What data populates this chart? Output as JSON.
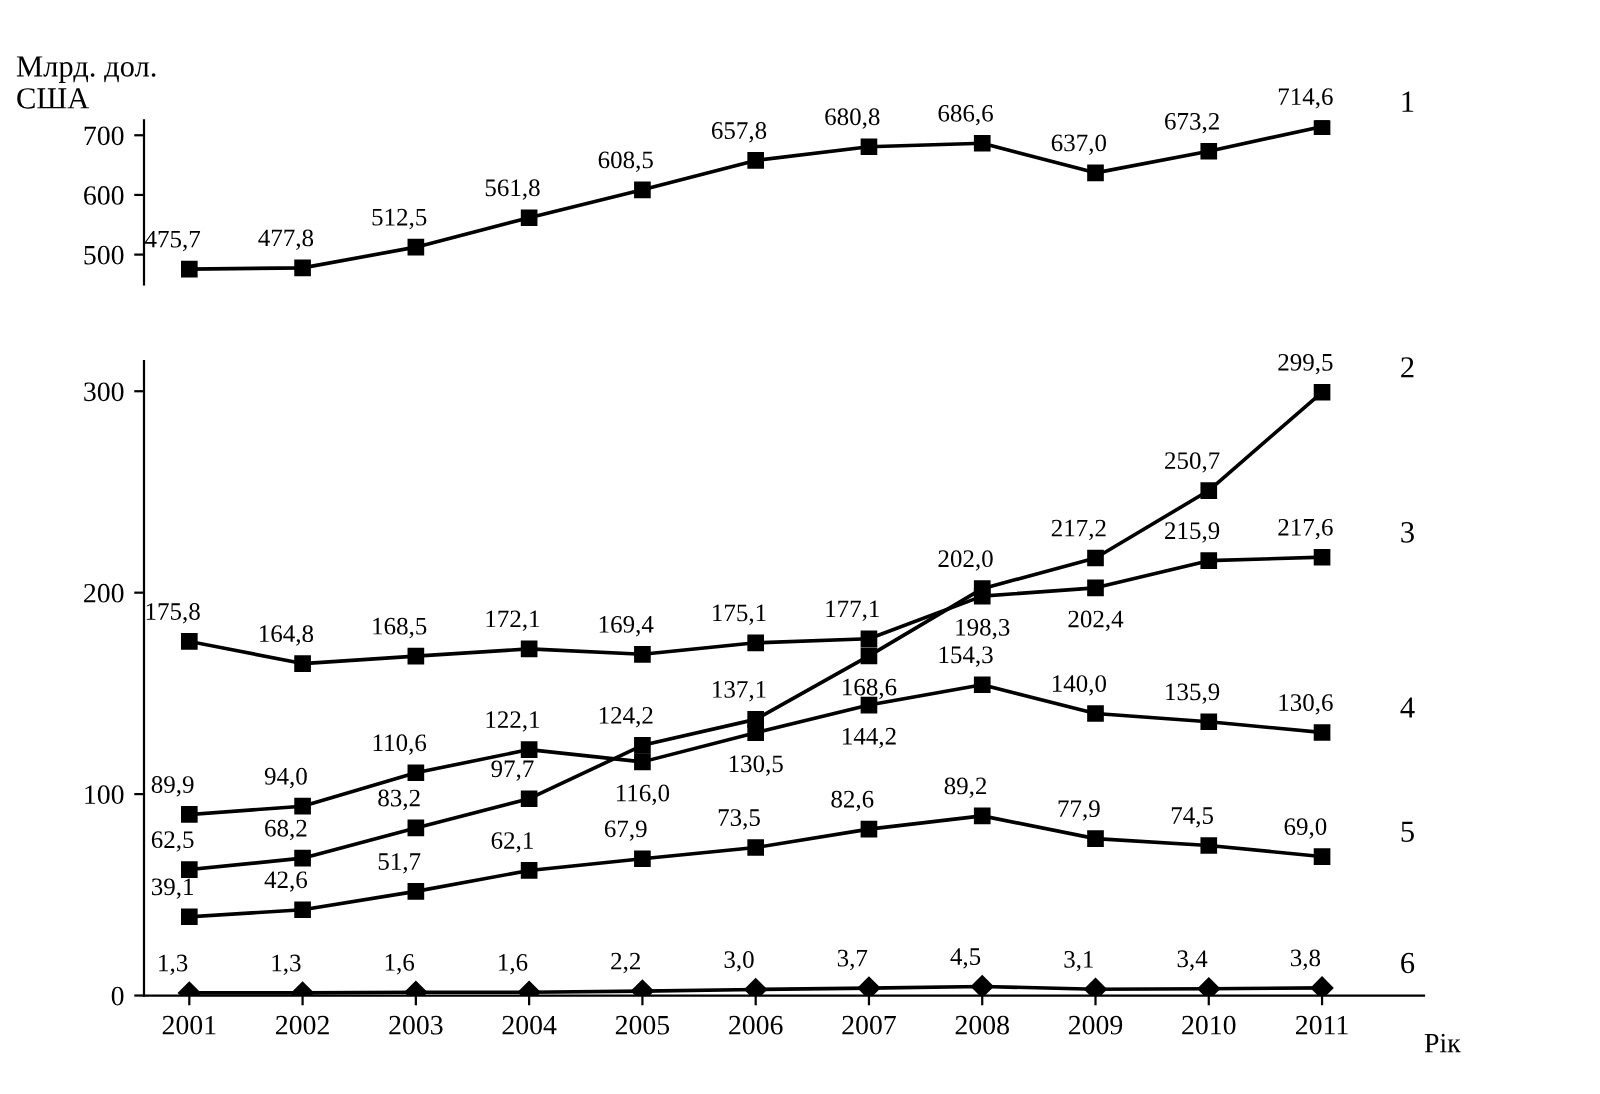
{
  "chart_data": [
    {
      "type": "line",
      "ylabel": "Млрд. дол.\nСША",
      "x": [
        2001,
        2002,
        2003,
        2004,
        2005,
        2006,
        2007,
        2008,
        2009,
        2010,
        2011
      ],
      "ylim": [
        450,
        725
      ],
      "yticks": [
        500,
        600,
        700
      ],
      "tick_labels": "y",
      "marker": "square",
      "grid": false,
      "legend": false,
      "series": [
        {
          "name": "1",
          "color": "#000000",
          "values": [
            475.7,
            477.8,
            512.5,
            561.8,
            608.5,
            657.8,
            680.8,
            686.6,
            637.0,
            673.2,
            714.6
          ],
          "value_labels": [
            "475,7",
            "477,8",
            "512,5",
            "561,8",
            "608,5",
            "657,8",
            "680,8",
            "686,6",
            "637,0",
            "673,2",
            "714,6"
          ]
        }
      ]
    },
    {
      "type": "line",
      "xlabel": "Рік",
      "x": [
        2001,
        2002,
        2003,
        2004,
        2005,
        2006,
        2007,
        2008,
        2009,
        2010,
        2011
      ],
      "xlim": [
        2000.6,
        2011.9
      ],
      "ylim": [
        0,
        315
      ],
      "yticks": [
        0,
        100,
        200,
        300
      ],
      "xticks": [
        2001,
        2002,
        2003,
        2004,
        2005,
        2006,
        2007,
        2008,
        2009,
        2010,
        2011
      ],
      "marker": "square",
      "grid": false,
      "legend": false,
      "series": [
        {
          "name": "2",
          "color": "#000000",
          "values": [
            62.5,
            68.2,
            83.2,
            97.7,
            124.2,
            137.1,
            168.6,
            202.0,
            217.2,
            250.7,
            299.5
          ],
          "value_labels": [
            "62,5",
            "68,2",
            "83,2",
            "97,7",
            "124,2",
            "137,1",
            "168,6",
            "202,0",
            "217,2",
            "250,7",
            "299,5"
          ]
        },
        {
          "name": "3",
          "color": "#000000",
          "values": [
            175.8,
            164.8,
            168.5,
            172.1,
            169.4,
            175.1,
            177.1,
            198.3,
            202.4,
            215.9,
            217.6
          ],
          "value_labels": [
            "175,8",
            "164,8",
            "168,5",
            "172,1",
            "169,4",
            "175,1",
            "177,1",
            "198,3",
            "202,4",
            "215,9",
            "217,6"
          ]
        },
        {
          "name": "4",
          "color": "#000000",
          "values": [
            89.9,
            94.0,
            110.6,
            122.1,
            116.0,
            130.5,
            144.2,
            154.3,
            140.0,
            135.9,
            130.6
          ],
          "value_labels": [
            "89,9",
            "94,0",
            "110,6",
            "122,1",
            "116,0",
            "130,5",
            "144,2",
            "154,3",
            "140,0",
            "135,9",
            "130,6"
          ]
        },
        {
          "name": "5",
          "color": "#000000",
          "values": [
            39.1,
            42.6,
            51.7,
            62.1,
            67.9,
            73.5,
            82.6,
            89.2,
            77.9,
            74.5,
            69.0
          ],
          "value_labels": [
            "39,1",
            "42,6",
            "51,7",
            "62,1",
            "67,9",
            "73,5",
            "82,6",
            "89,2",
            "77,9",
            "74,5",
            "69,0"
          ]
        },
        {
          "name": "6",
          "color": "#000000",
          "marker": "diamond",
          "values": [
            1.3,
            1.3,
            1.6,
            1.6,
            2.2,
            3.0,
            3.7,
            4.5,
            3.1,
            3.4,
            3.8
          ],
          "value_labels": [
            "1,3",
            "1,3",
            "1,6",
            "1,6",
            "2,2",
            "3,0",
            "3,7",
            "4,5",
            "3,1",
            "3,4",
            "3,8"
          ]
        }
      ]
    }
  ]
}
